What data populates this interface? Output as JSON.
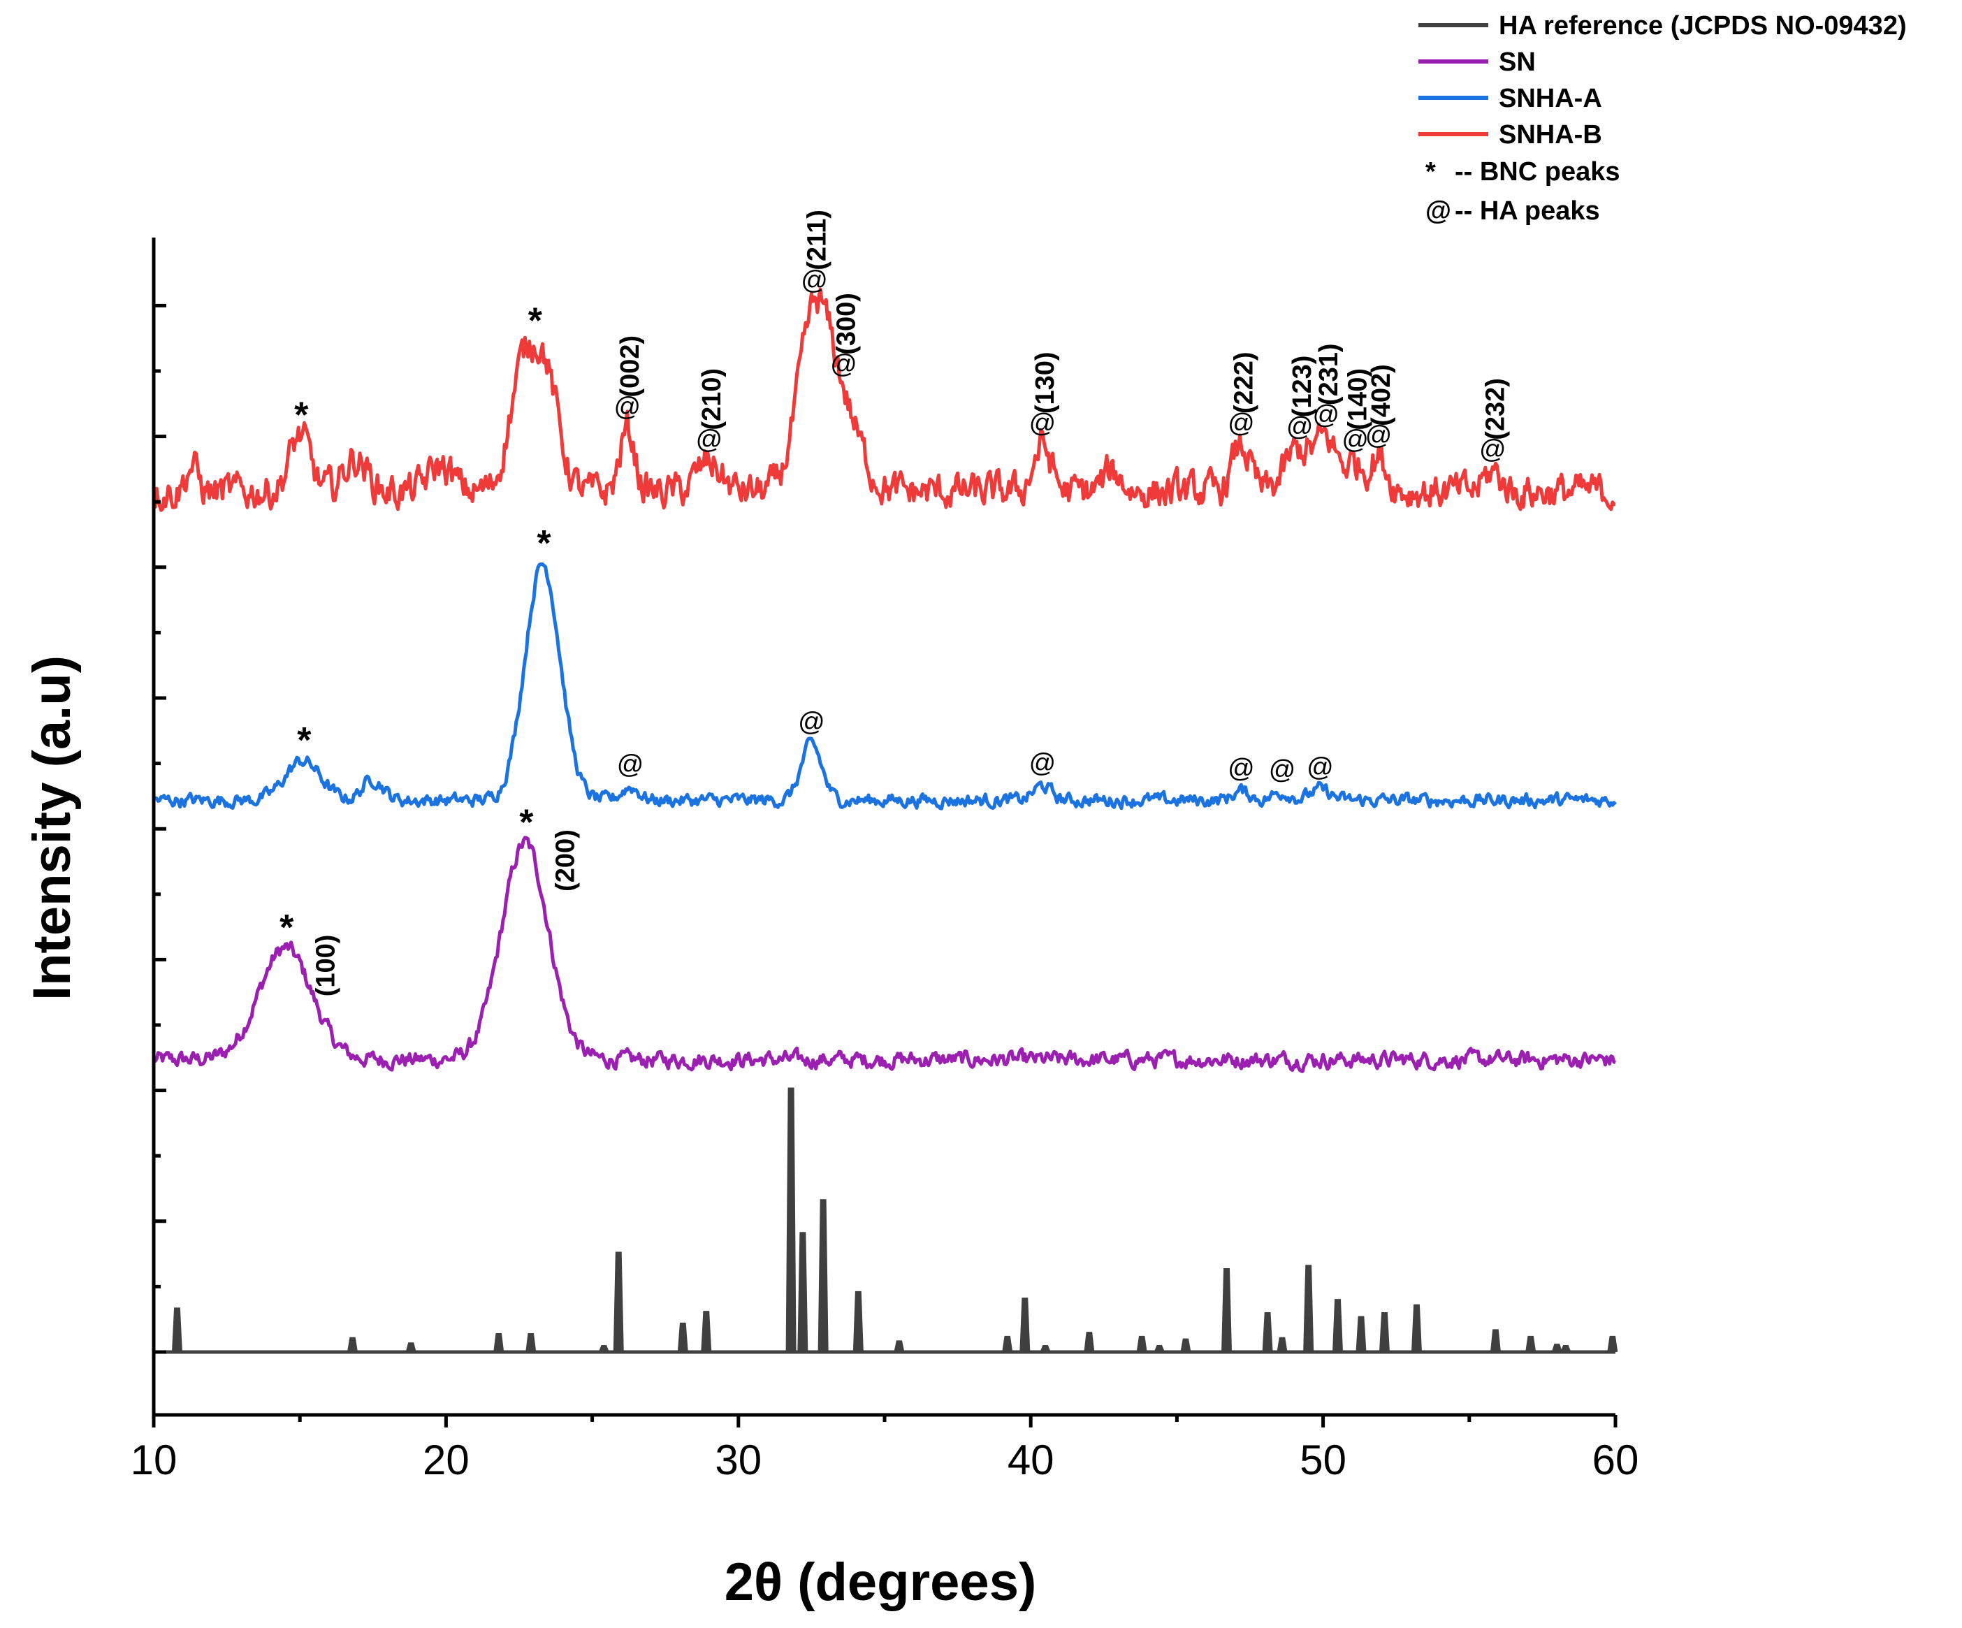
{
  "chart_data": {
    "type": "line",
    "title": "",
    "xlabel": "2θ (degrees)",
    "ylabel": "Intensity (a.u)",
    "xlim": [
      10,
      60
    ],
    "x_ticks": [
      10,
      20,
      30,
      40,
      50,
      60
    ],
    "x_tick_labels": [
      "10",
      "20",
      "30",
      "40",
      "50",
      "60"
    ],
    "y_ticks_shown": false,
    "legend_position": "top-right",
    "legend": [
      {
        "name": "HA reference (JCPDS NO-09432)",
        "color": "#404040"
      },
      {
        "name": "SN",
        "color": "#9b1fb0"
      },
      {
        "name": "SNHA-A",
        "color": "#1a73e0"
      },
      {
        "name": "SNHA-B",
        "color": "#f03a3a"
      }
    ],
    "legend_notes": [
      {
        "symbol": "*",
        "text": "-- BNC peaks"
      },
      {
        "symbol": "@",
        "text": "-- HA peaks"
      }
    ],
    "series": [
      {
        "name": "HA reference (JCPDS NO-09432)",
        "style": "stick",
        "baseline": 0,
        "peaks": [
          [
            10.8,
            6.5
          ],
          [
            16.8,
            2.0
          ],
          [
            18.8,
            1.2
          ],
          [
            21.8,
            2.6
          ],
          [
            22.9,
            2.6
          ],
          [
            25.4,
            0.8
          ],
          [
            25.9,
            15.0
          ],
          [
            28.1,
            4.2
          ],
          [
            28.9,
            6.0
          ],
          [
            31.8,
            40.0
          ],
          [
            32.2,
            18.0
          ],
          [
            32.9,
            23.0
          ],
          [
            34.1,
            9.0
          ],
          [
            35.5,
            1.5
          ],
          [
            39.2,
            2.2
          ],
          [
            39.8,
            8.0
          ],
          [
            40.5,
            0.8
          ],
          [
            42.0,
            2.8
          ],
          [
            43.8,
            2.2
          ],
          [
            44.4,
            0.8
          ],
          [
            45.3,
            1.8
          ],
          [
            46.7,
            12.5
          ],
          [
            48.1,
            5.8
          ],
          [
            48.6,
            2.0
          ],
          [
            49.5,
            13.0
          ],
          [
            50.5,
            7.8
          ],
          [
            51.3,
            5.2
          ],
          [
            52.1,
            5.8
          ],
          [
            53.2,
            7.0
          ],
          [
            55.9,
            3.2
          ],
          [
            57.1,
            2.2
          ],
          [
            58.0,
            1.0
          ],
          [
            58.3,
            0.8
          ],
          [
            59.9,
            2.2
          ]
        ]
      },
      {
        "name": "SN",
        "style": "line",
        "baseline": 44.5,
        "broad_peaks": [
          {
            "center": 14.5,
            "height": 17.0,
            "width": 0.9
          },
          {
            "center": 22.7,
            "height": 33.0,
            "width": 0.8
          }
        ],
        "noise_amplitude": 1.1
      },
      {
        "name": "SNHA-A",
        "style": "line",
        "baseline": 84.0,
        "broad_peaks": [
          {
            "center": 15.1,
            "height": 6.0,
            "width": 0.6
          },
          {
            "center": 17.5,
            "height": 3.2,
            "width": 0.35
          },
          {
            "center": 23.3,
            "height": 36.0,
            "width": 0.6
          },
          {
            "center": 26.3,
            "height": 2.0,
            "width": 0.3
          },
          {
            "center": 32.5,
            "height": 8.5,
            "width": 0.35
          },
          {
            "center": 40.4,
            "height": 2.2,
            "width": 0.3
          },
          {
            "center": 47.2,
            "height": 1.4,
            "width": 0.3
          },
          {
            "center": 48.6,
            "height": 1.2,
            "width": 0.3
          },
          {
            "center": 49.9,
            "height": 1.6,
            "width": 0.35
          }
        ],
        "noise_amplitude": 0.9
      },
      {
        "name": "SNHA-B",
        "style": "line",
        "baseline": 131.0,
        "broad_peaks": [
          {
            "center": 11.3,
            "height": 4.0,
            "width": 0.2
          },
          {
            "center": 15.0,
            "height": 8.5,
            "width": 0.35
          },
          {
            "center": 16.9,
            "height": 5.0,
            "width": 0.4
          },
          {
            "center": 19.8,
            "height": 4.0,
            "width": 0.4
          },
          {
            "center": 22.6,
            "height": 17.0,
            "width": 0.45
          },
          {
            "center": 23.4,
            "height": 17.0,
            "width": 0.45
          },
          {
            "center": 26.2,
            "height": 9.5,
            "width": 0.25
          },
          {
            "center": 29.0,
            "height": 4.5,
            "width": 0.4
          },
          {
            "center": 32.6,
            "height": 26.0,
            "width": 0.55
          },
          {
            "center": 33.6,
            "height": 11.0,
            "width": 0.6
          },
          {
            "center": 40.4,
            "height": 7.0,
            "width": 0.3
          },
          {
            "center": 42.8,
            "height": 3.0,
            "width": 0.3
          },
          {
            "center": 47.2,
            "height": 7.0,
            "width": 0.3
          },
          {
            "center": 49.1,
            "height": 6.0,
            "width": 0.4
          },
          {
            "center": 50.1,
            "height": 8.0,
            "width": 0.4
          },
          {
            "center": 51.1,
            "height": 4.0,
            "width": 0.3
          },
          {
            "center": 51.9,
            "height": 5.0,
            "width": 0.3
          },
          {
            "center": 55.8,
            "height": 3.0,
            "width": 0.3
          }
        ],
        "noise_amplitude": 2.4
      }
    ],
    "annotations": [
      {
        "series": "SN",
        "x": 14.5,
        "symbol": "*",
        "label": "(100)"
      },
      {
        "series": "SN",
        "x": 22.7,
        "symbol": "*",
        "label": "(200)"
      },
      {
        "series": "SNHA-A",
        "x": 15.1,
        "symbol": "*",
        "label": ""
      },
      {
        "series": "SNHA-A",
        "x": 23.3,
        "symbol": "*",
        "label": ""
      },
      {
        "series": "SNHA-A",
        "x": 26.3,
        "symbol": "@",
        "label": ""
      },
      {
        "series": "SNHA-A",
        "x": 32.5,
        "symbol": "@",
        "label": ""
      },
      {
        "series": "SNHA-A",
        "x": 40.4,
        "symbol": "@",
        "label": ""
      },
      {
        "series": "SNHA-A",
        "x": 47.2,
        "symbol": "@",
        "label": ""
      },
      {
        "series": "SNHA-A",
        "x": 48.6,
        "symbol": "@",
        "label": ""
      },
      {
        "series": "SNHA-A",
        "x": 49.9,
        "symbol": "@",
        "label": ""
      },
      {
        "series": "SNHA-B",
        "x": 15.0,
        "symbol": "*",
        "label": ""
      },
      {
        "series": "SNHA-B",
        "x": 23.0,
        "symbol": "*",
        "label": ""
      },
      {
        "series": "SNHA-B",
        "x": 26.2,
        "symbol": "@",
        "label": "(002)"
      },
      {
        "series": "SNHA-B",
        "x": 29.0,
        "symbol": "@",
        "label": "(210)"
      },
      {
        "series": "SNHA-B",
        "x": 32.6,
        "symbol": "@",
        "label": "(211)"
      },
      {
        "series": "SNHA-B",
        "x": 33.6,
        "symbol": "@",
        "label": "(300)"
      },
      {
        "series": "SNHA-B",
        "x": 40.4,
        "symbol": "@",
        "label": "(130)"
      },
      {
        "series": "SNHA-B",
        "x": 47.2,
        "symbol": "@",
        "label": "(222)"
      },
      {
        "series": "SNHA-B",
        "x": 49.2,
        "symbol": "@",
        "label": "(123)"
      },
      {
        "series": "SNHA-B",
        "x": 50.1,
        "symbol": "@",
        "label": "(231)"
      },
      {
        "series": "SNHA-B",
        "x": 51.1,
        "symbol": "@",
        "label": "(140)"
      },
      {
        "series": "SNHA-B",
        "x": 51.9,
        "symbol": "@",
        "label": "(402)"
      },
      {
        "series": "SNHA-B",
        "x": 55.8,
        "symbol": "@",
        "label": "(232)"
      }
    ]
  }
}
